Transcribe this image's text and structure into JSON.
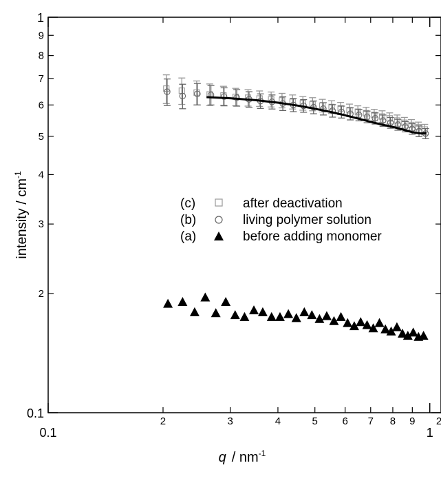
{
  "chart_data": {
    "type": "scatter",
    "x_scale": "log",
    "y_scale": "log",
    "xlim": [
      0.1,
      1.07
    ],
    "ylim": [
      0.1,
      1
    ],
    "xlabel": {
      "symbol": "q",
      "unit": "/ nm",
      "exponent": "-1"
    },
    "ylabel": {
      "text": "intensity / cm",
      "exponent": "-1"
    },
    "x_major_ticks": [
      {
        "value": 0.1,
        "label": "0.1"
      },
      {
        "value": 1,
        "label": "1"
      }
    ],
    "x_minor_ticks": [
      {
        "value": 0.2,
        "label": "2"
      },
      {
        "value": 0.3,
        "label": "3"
      },
      {
        "value": 0.4,
        "label": "4"
      },
      {
        "value": 0.5,
        "label": "5"
      },
      {
        "value": 0.6,
        "label": "6"
      },
      {
        "value": 0.7,
        "label": "7"
      },
      {
        "value": 0.8,
        "label": "8"
      },
      {
        "value": 0.9,
        "label": "9"
      },
      {
        "value": 2,
        "label": "2"
      }
    ],
    "y_major_ticks": [
      {
        "value": 0.1,
        "label": "0.1"
      },
      {
        "value": 1,
        "label": "1"
      }
    ],
    "y_minor_ticks": [
      {
        "value": 0.2,
        "label": "2"
      },
      {
        "value": 0.3,
        "label": "3"
      },
      {
        "value": 0.4,
        "label": "4"
      },
      {
        "value": 0.5,
        "label": "5"
      },
      {
        "value": 0.6,
        "label": "6"
      },
      {
        "value": 0.7,
        "label": "7"
      },
      {
        "value": 0.8,
        "label": "8"
      },
      {
        "value": 0.9,
        "label": "9"
      }
    ],
    "legend": {
      "position": "center",
      "entries": [
        {
          "key": "(c)",
          "label": "after deactivation",
          "series": "c"
        },
        {
          "key": "(b)",
          "label": "living polymer solution",
          "series": "b"
        },
        {
          "key": "(a)",
          "label": "before adding monomer",
          "series": "a"
        }
      ]
    },
    "series": [
      {
        "id": "c",
        "marker": "open-square",
        "color": "#999999",
        "x": [
          0.204,
          0.224,
          0.245,
          0.265,
          0.288,
          0.31,
          0.334,
          0.358,
          0.384,
          0.41,
          0.437,
          0.465,
          0.493,
          0.523,
          0.553,
          0.584,
          0.616,
          0.648,
          0.681,
          0.715,
          0.75,
          0.785,
          0.821,
          0.858,
          0.895,
          0.933,
          0.97
        ],
        "y": [
          0.66,
          0.652,
          0.645,
          0.638,
          0.634,
          0.629,
          0.626,
          0.623,
          0.62,
          0.616,
          0.611,
          0.606,
          0.603,
          0.598,
          0.593,
          0.588,
          0.582,
          0.577,
          0.572,
          0.566,
          0.561,
          0.555,
          0.548,
          0.541,
          0.534,
          0.527,
          0.52
        ],
        "err": [
          0.055,
          0.05,
          0.045,
          0.04,
          0.035,
          0.032,
          0.03,
          0.028,
          0.027,
          0.026,
          0.025,
          0.024,
          0.023,
          0.022,
          0.022,
          0.021,
          0.021,
          0.02,
          0.02,
          0.019,
          0.019,
          0.018,
          0.018,
          0.017,
          0.017,
          0.016,
          0.016
        ]
      },
      {
        "id": "b",
        "marker": "open-circle",
        "color": "#666666",
        "x": [
          0.205,
          0.225,
          0.246,
          0.267,
          0.289,
          0.312,
          0.336,
          0.36,
          0.386,
          0.412,
          0.439,
          0.467,
          0.496,
          0.526,
          0.556,
          0.587,
          0.619,
          0.652,
          0.685,
          0.719,
          0.754,
          0.789,
          0.825,
          0.862,
          0.899,
          0.937,
          0.975
        ],
        "y": [
          0.648,
          0.632,
          0.64,
          0.636,
          0.63,
          0.626,
          0.62,
          0.614,
          0.611,
          0.605,
          0.6,
          0.597,
          0.592,
          0.587,
          0.58,
          0.576,
          0.57,
          0.566,
          0.56,
          0.555,
          0.548,
          0.541,
          0.535,
          0.529,
          0.522,
          0.515,
          0.508
        ],
        "err": [
          0.05,
          0.045,
          0.04,
          0.036,
          0.033,
          0.03,
          0.028,
          0.026,
          0.025,
          0.024,
          0.023,
          0.022,
          0.022,
          0.021,
          0.021,
          0.02,
          0.02,
          0.019,
          0.019,
          0.018,
          0.018,
          0.017,
          0.017,
          0.016,
          0.016,
          0.016,
          0.015
        ]
      },
      {
        "id": "a",
        "marker": "filled-triangle",
        "color": "#000000",
        "x": [
          0.206,
          0.225,
          0.242,
          0.258,
          0.275,
          0.292,
          0.309,
          0.327,
          0.346,
          0.365,
          0.385,
          0.405,
          0.426,
          0.447,
          0.469,
          0.491,
          0.514,
          0.537,
          0.561,
          0.585,
          0.609,
          0.634,
          0.659,
          0.685,
          0.711,
          0.738,
          0.765,
          0.792,
          0.82,
          0.848,
          0.876,
          0.905,
          0.934,
          0.963
        ],
        "y": [
          0.188,
          0.19,
          0.179,
          0.195,
          0.178,
          0.19,
          0.176,
          0.174,
          0.181,
          0.179,
          0.174,
          0.174,
          0.177,
          0.173,
          0.179,
          0.176,
          0.172,
          0.175,
          0.17,
          0.174,
          0.168,
          0.165,
          0.169,
          0.166,
          0.163,
          0.168,
          0.162,
          0.16,
          0.164,
          0.158,
          0.156,
          0.159,
          0.155,
          0.156
        ]
      }
    ],
    "fit_curve": {
      "x": [
        0.26,
        0.3,
        0.35,
        0.4,
        0.45,
        0.5,
        0.55,
        0.6,
        0.65,
        0.7,
        0.75,
        0.8,
        0.85,
        0.9,
        0.95,
        0.98
      ],
      "y": [
        0.628,
        0.624,
        0.617,
        0.608,
        0.598,
        0.587,
        0.576,
        0.565,
        0.554,
        0.544,
        0.535,
        0.528,
        0.52,
        0.512,
        0.508,
        0.509
      ]
    }
  }
}
